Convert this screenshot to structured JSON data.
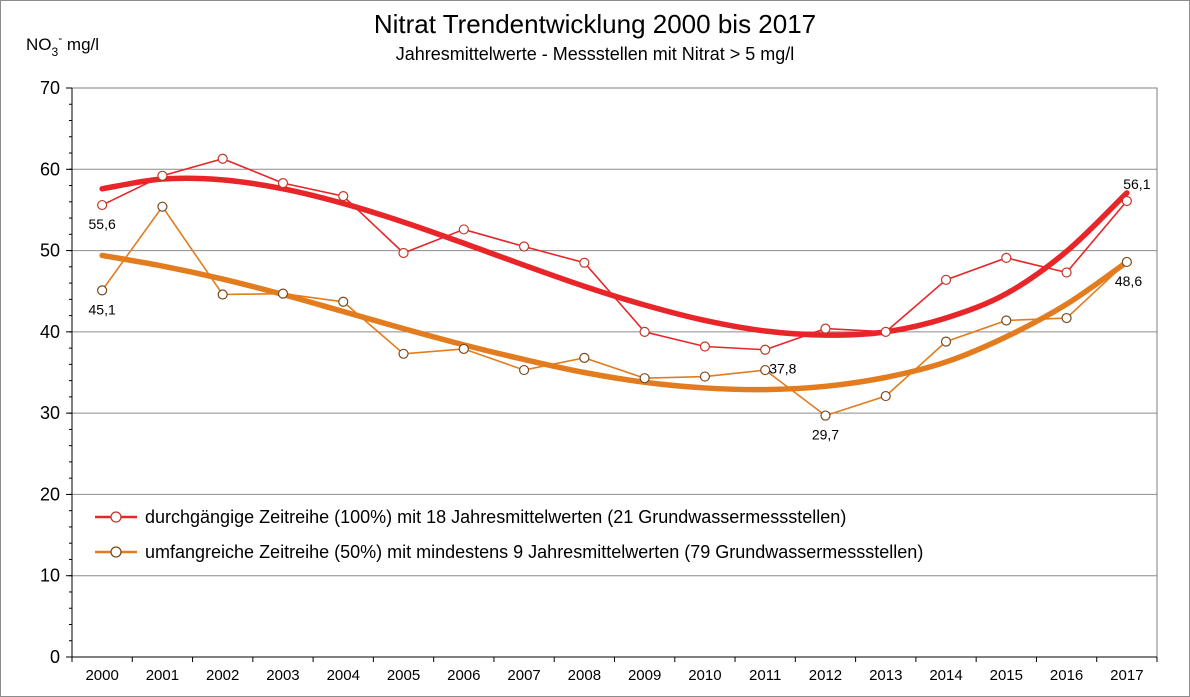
{
  "chart_data": {
    "type": "line",
    "title": "Nitrat Trendentwicklung 2000 bis 2017",
    "subtitle": "Jahresmittelwerte - Messstellen mit Nitrat > 5 mg/l",
    "ylabel_main": "NO",
    "ylabel_sub": "3",
    "ylabel_sup": "-",
    "ylabel_rest": " mg/l",
    "xlabel": "",
    "ylim": [
      0,
      70
    ],
    "yticks": [
      "0",
      "10",
      "20",
      "30",
      "40",
      "50",
      "60",
      "70"
    ],
    "grid": true,
    "legend_position": "bottom-left",
    "categories": [
      "2000",
      "2001",
      "2002",
      "2003",
      "2004",
      "2005",
      "2006",
      "2007",
      "2008",
      "2009",
      "2010",
      "2011",
      "2012",
      "2013",
      "2014",
      "2015",
      "2016",
      "2017"
    ],
    "series": [
      {
        "name": "durchgängige Zeitreihe (100%) mit 18 Jahresmittelwerten (21 Grundwassermessstellen)",
        "color": "#e8262a",
        "values": [
          55.6,
          59.2,
          61.3,
          58.3,
          56.7,
          49.7,
          52.6,
          50.5,
          48.5,
          40.0,
          38.2,
          37.8,
          40.4,
          40.0,
          46.4,
          49.1,
          47.3,
          56.1
        ],
        "trend": [
          57.6,
          58.8,
          58.7,
          57.6,
          55.8,
          53.5,
          50.9,
          48.2,
          45.6,
          43.3,
          41.4,
          40.1,
          39.6,
          40.0,
          41.7,
          44.7,
          49.9,
          57.1
        ],
        "labels": [
          {
            "index": 0,
            "text": "55,6",
            "position": "below"
          },
          {
            "index": 11,
            "text": "37,8",
            "position": "below-right"
          },
          {
            "index": 17,
            "text": "56,1",
            "position": "above"
          }
        ]
      },
      {
        "name": "umfangreiche Zeitreihe (50%) mit mindestens 9 Jahresmittelwerten (79 Grundwassermessstellen)",
        "color": "#e27c1f",
        "values": [
          45.1,
          55.4,
          44.6,
          44.7,
          43.7,
          37.3,
          37.9,
          35.3,
          36.8,
          34.3,
          34.5,
          35.3,
          29.7,
          32.1,
          38.8,
          41.4,
          41.7,
          48.6
        ],
        "trend": [
          49.4,
          48.1,
          46.5,
          44.6,
          42.5,
          40.4,
          38.4,
          36.6,
          35.0,
          33.8,
          33.1,
          32.9,
          33.3,
          34.4,
          36.3,
          39.4,
          43.4,
          48.6
        ],
        "labels": [
          {
            "index": 0,
            "text": "45,1",
            "position": "below"
          },
          {
            "index": 12,
            "text": "29,7",
            "position": "below"
          },
          {
            "index": 17,
            "text": "48,6",
            "position": "below-right"
          }
        ]
      }
    ]
  }
}
